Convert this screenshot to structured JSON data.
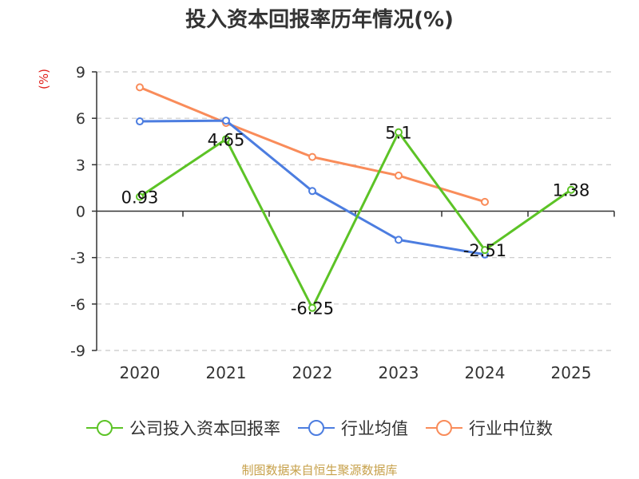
{
  "chart_data": {
    "type": "line",
    "title": "投入资本回报率历年情况(%)",
    "ylabel": "(%)",
    "xlabel": "",
    "categories": [
      "2020",
      "2021",
      "2022",
      "2023",
      "2024",
      "2025"
    ],
    "ylim": [
      -9,
      9
    ],
    "yticks": [
      9,
      6,
      3,
      0,
      -3,
      -6,
      -9
    ],
    "grid": true,
    "legend_position": "bottom",
    "series": [
      {
        "name": "公司投入资本回报率",
        "color": "#5cc326",
        "values": [
          0.93,
          4.65,
          -6.25,
          5.1,
          -2.51,
          1.38
        ],
        "labels": [
          "0.93",
          "4.65",
          "-6.25",
          "5.1",
          "-2.51",
          "1.38"
        ],
        "show_labels": true
      },
      {
        "name": "行业均值",
        "color": "#4c7de0",
        "values": [
          5.8,
          5.85,
          1.3,
          -1.85,
          -2.8,
          null
        ],
        "show_labels": false
      },
      {
        "name": "行业中位数",
        "color": "#f98c5a",
        "values": [
          8.0,
          5.7,
          3.5,
          2.3,
          0.6,
          null
        ],
        "show_labels": false
      }
    ]
  },
  "footer": "制图数据来自恒生聚源数据库"
}
